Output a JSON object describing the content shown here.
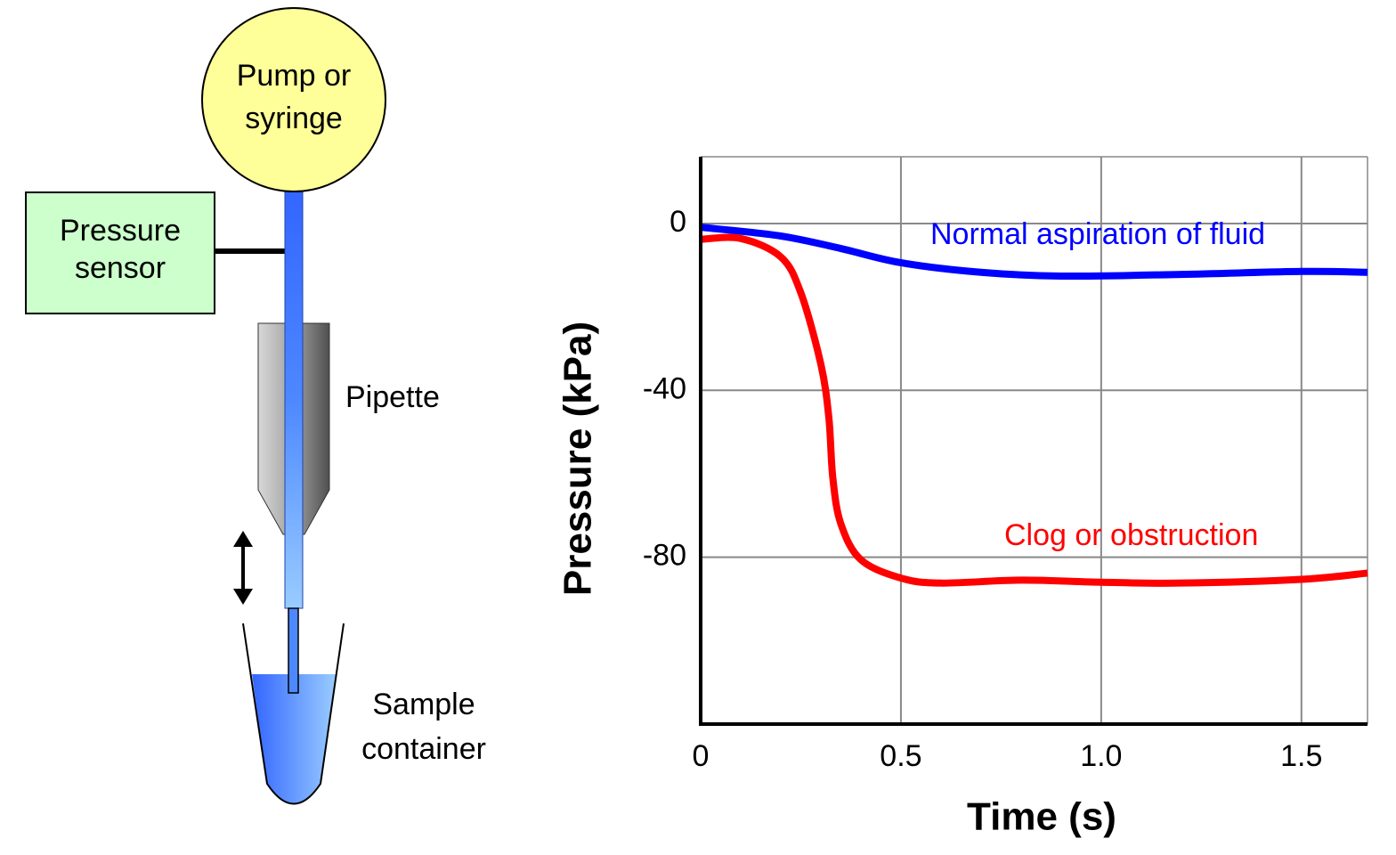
{
  "diagram": {
    "pump": [
      "Pump or",
      "syringe"
    ],
    "sensor": [
      "Pressure",
      "sensor"
    ],
    "pipette": "Pipette",
    "container": [
      "Sample",
      "container"
    ]
  },
  "chart_data": {
    "type": "line",
    "x_label": "Time (s)",
    "y_label": "Pressure (kPa)",
    "xlim": [
      0,
      1.665
    ],
    "ylim": [
      -120,
      16
    ],
    "xticks": [
      0,
      0.5,
      {
        "value": 1,
        "label": "1.0"
      },
      1.5
    ],
    "yticks": [
      0,
      -40,
      -80
    ],
    "grid": true,
    "series": [
      {
        "name": "Normal aspiration of fluid",
        "color": "#0000ff",
        "x": [
          0,
          0.2,
          0.35,
          0.5,
          0.7,
          0.9,
          1.2,
          1.5,
          1.665
        ],
        "values": [
          -0.9,
          -3,
          -6,
          -9.4,
          -11.7,
          -12.6,
          -12.2,
          -11.5,
          -11.7
        ]
      },
      {
        "name": "Clog or obstruction",
        "color": "#ff0000",
        "x": [
          0,
          0.1,
          0.2,
          0.25,
          0.3,
          0.32,
          0.33,
          0.35,
          0.4,
          0.5,
          0.6,
          0.8,
          1.0,
          1.2,
          1.5,
          1.665
        ],
        "values": [
          -3.8,
          -3.6,
          -8,
          -16.6,
          -33.7,
          -46.5,
          -61,
          -72,
          -80.6,
          -85,
          -86.2,
          -85.5,
          -86,
          -86.2,
          -85.3,
          -83.8
        ]
      }
    ]
  }
}
